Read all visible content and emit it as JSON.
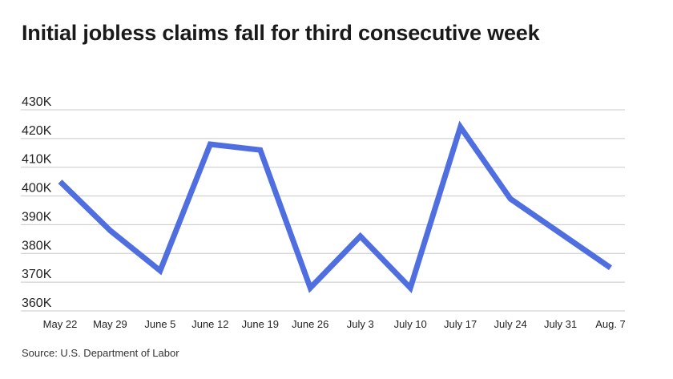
{
  "title": "Initial jobless claims fall for third consecutive week",
  "source": "Source: U.S. Department of Labor",
  "chart_data": {
    "type": "line",
    "title": "Initial jobless claims fall for third consecutive week",
    "categories": [
      "May 22",
      "May 29",
      "June 5",
      "June 12",
      "June 19",
      "June 26",
      "July 3",
      "July 10",
      "July 17",
      "July 24",
      "July 31",
      "Aug. 7"
    ],
    "series": [
      {
        "values": [
          405000,
          388000,
          374000,
          418000,
          416000,
          368000,
          386000,
          368000,
          424000,
          399000,
          387000,
          375000
        ]
      }
    ],
    "yticks": [
      360000,
      370000,
      380000,
      390000,
      400000,
      410000,
      420000,
      430000
    ],
    "ytick_labels": [
      "360K",
      "370K",
      "380K",
      "390K",
      "400K",
      "410K",
      "420K",
      "430K"
    ],
    "ylim": [
      360000,
      430000
    ],
    "xlabel": "",
    "ylabel": "",
    "grid": true,
    "line_color": "#4f6fe0",
    "grid_color": "#c8c8c8"
  }
}
